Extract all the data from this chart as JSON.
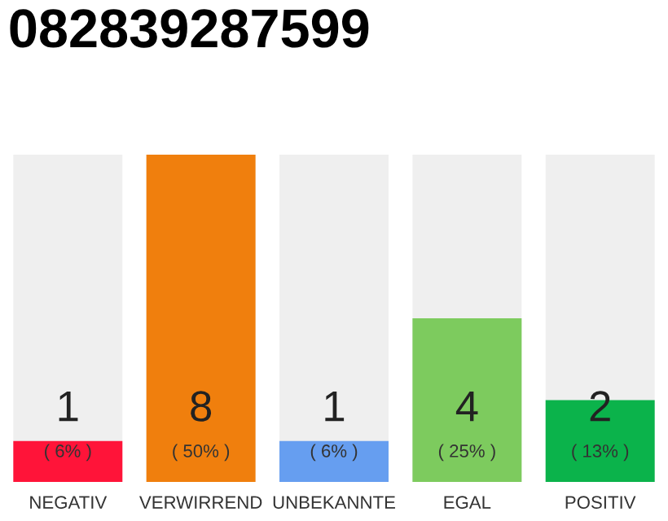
{
  "chart_data": {
    "type": "bar",
    "title": "082839287599",
    "categories": [
      "NEGATIV",
      "VERWIRREND",
      "UNBEKANNTE",
      "EGAL",
      "POSITIV"
    ],
    "values": [
      1,
      8,
      1,
      4,
      2
    ],
    "colors": [
      "#ff1439",
      "#f07f0d",
      "#669ef0",
      "#7dcb5e",
      "#0bb34b"
    ],
    "value_labels": [
      "1",
      "8",
      "1",
      "4",
      "2"
    ],
    "annotations": [
      "( 6% )",
      "( 50% )",
      "( 6% )",
      "( 25% )",
      "( 13% )"
    ],
    "grid": false,
    "legend": false
  }
}
